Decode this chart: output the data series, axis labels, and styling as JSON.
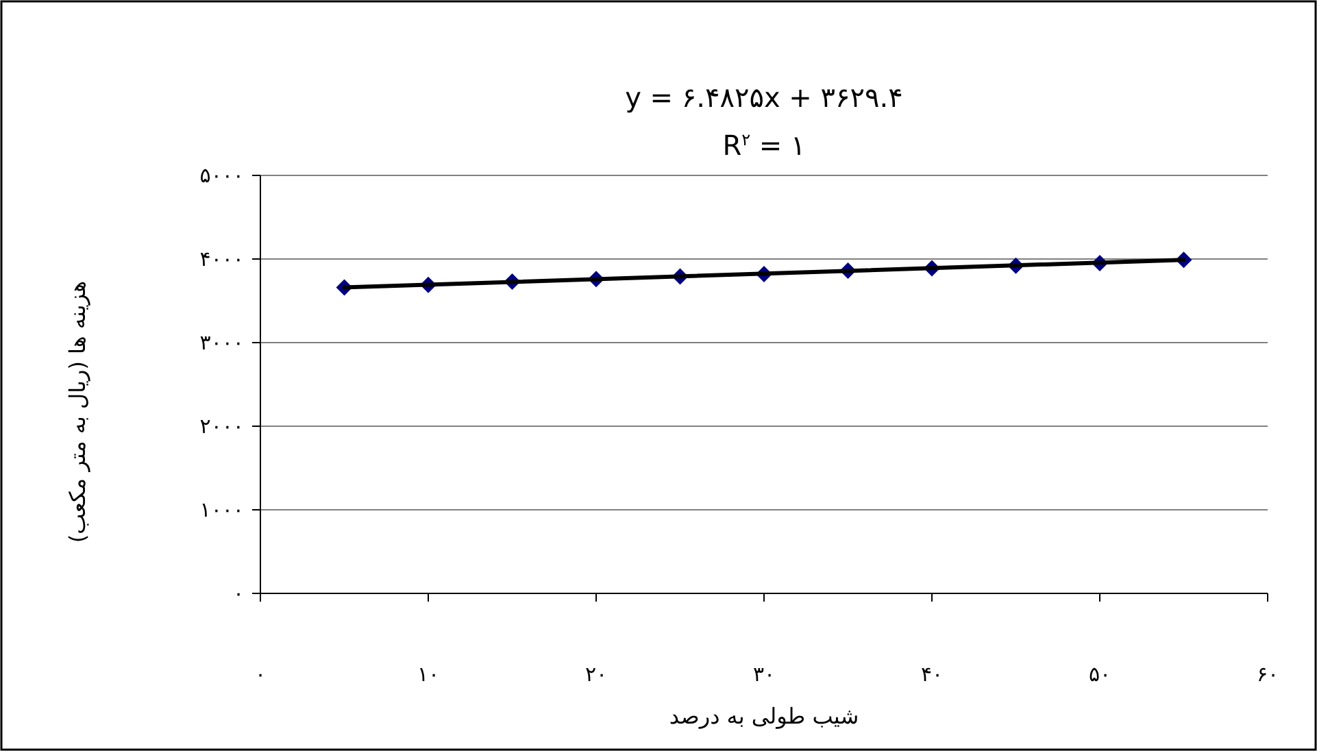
{
  "chart_data": {
    "type": "line",
    "annotations": [
      "y = ۶.۴۸۲۵x + ۳۶۲۹.۴",
      "R$^{۲}$ = ۱"
    ],
    "xlabel": "شیب طولی به درصد",
    "ylabel": "هزینه ها (ریال به متر مکعب)",
    "xlim": [
      0,
      60
    ],
    "xticks": [
      {
        "value": 0,
        "label": "۰"
      },
      {
        "value": 10,
        "label": "۱۰"
      },
      {
        "value": 20,
        "label": "۲۰"
      },
      {
        "value": 30,
        "label": "۳۰"
      },
      {
        "value": 40,
        "label": "۴۰"
      },
      {
        "value": 50,
        "label": "۵۰"
      },
      {
        "value": 60,
        "label": "۶۰"
      }
    ],
    "ylim": [
      0,
      5000
    ],
    "yticks": [
      {
        "value": 0,
        "label": "۰"
      },
      {
        "value": 1000,
        "label": "۱۰۰۰"
      },
      {
        "value": 2000,
        "label": "۲۰۰۰"
      },
      {
        "value": 3000,
        "label": "۳۰۰۰"
      },
      {
        "value": 4000,
        "label": "۴۰۰۰"
      },
      {
        "value": 5000,
        "label": "۵۰۰۰"
      }
    ],
    "grid": "y",
    "series": [
      {
        "type": "scatter",
        "color": "#000080",
        "marker": "diamond",
        "x": [
          5,
          10,
          15,
          20,
          25,
          30,
          35,
          40,
          45,
          50,
          55
        ],
        "values": [
          3660,
          3690,
          3730,
          3760,
          3790,
          3820,
          3860,
          3890,
          3920,
          3950,
          3990
        ]
      },
      {
        "color": "#000000",
        "marker": "none",
        "line_style": "solid",
        "x": [
          5,
          55
        ],
        "values": [
          3660,
          3990
        ]
      }
    ]
  }
}
